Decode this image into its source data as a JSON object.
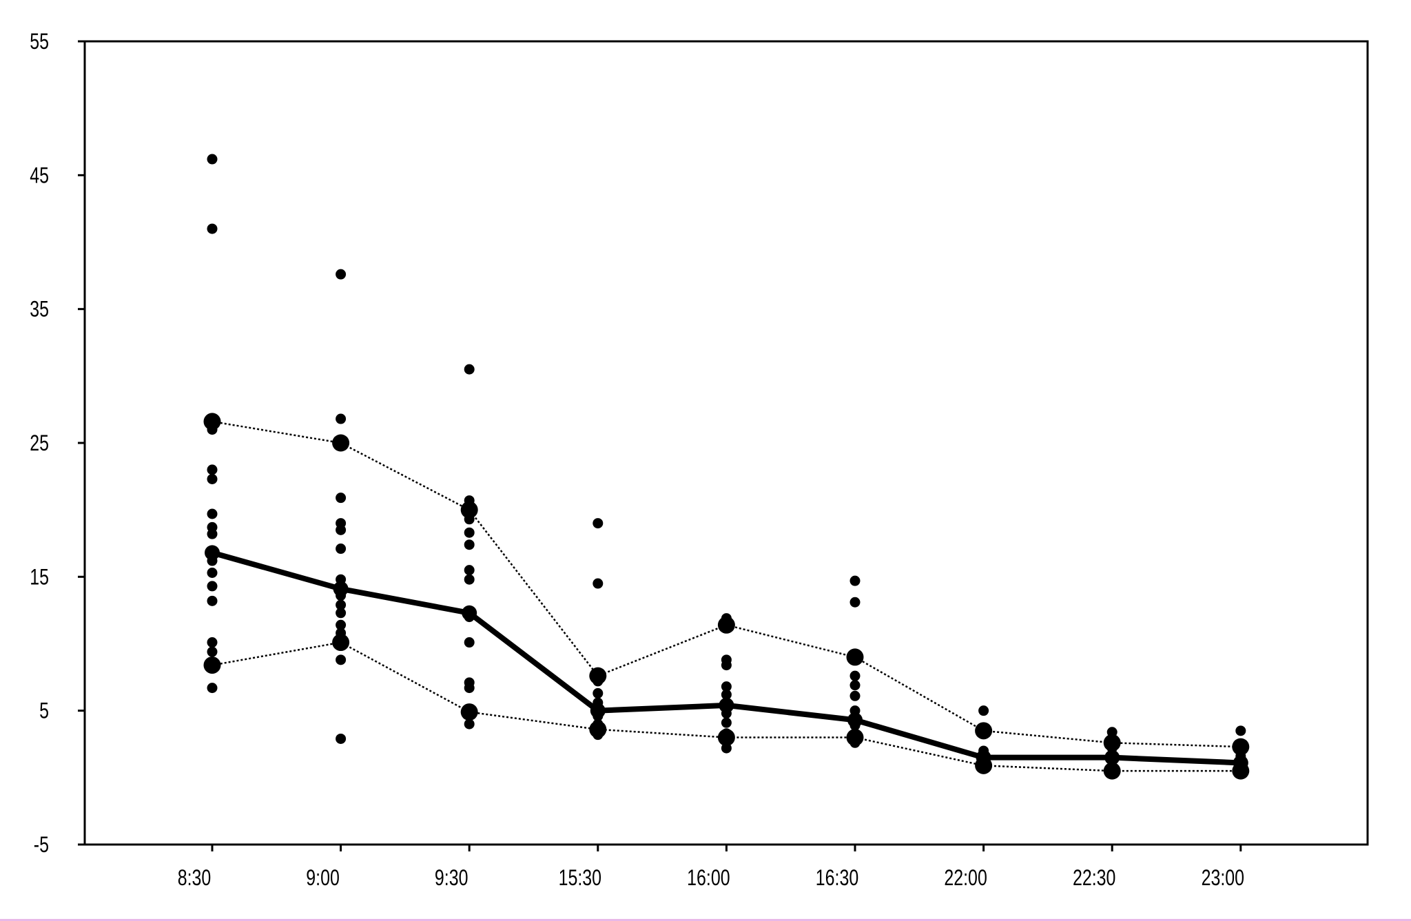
{
  "chart_data": {
    "type": "scatter",
    "title": "",
    "xlabel": "",
    "ylabel": "",
    "categories": [
      "8:30",
      "9:00",
      "9:30",
      "15:30",
      "16:00",
      "16:30",
      "22:00",
      "22:30",
      "23:00"
    ],
    "ylim": [
      -5,
      55
    ],
    "yticks": [
      -5,
      5,
      15,
      25,
      35,
      45,
      55
    ],
    "grid": false,
    "legend": "none",
    "points": [
      [
        46.2,
        41.0,
        26.0,
        23.0,
        22.3,
        19.7,
        18.7,
        18.2,
        16.2,
        15.3,
        14.3,
        13.2,
        10.1,
        9.4,
        6.7
      ],
      [
        37.6,
        26.8,
        20.9,
        19.0,
        18.5,
        17.1,
        14.8,
        13.6,
        12.9,
        12.3,
        11.4,
        10.8,
        8.8,
        2.9
      ],
      [
        30.5,
        20.7,
        19.3,
        18.3,
        17.4,
        15.5,
        14.8,
        12.0,
        10.1,
        7.1,
        6.7,
        4.0
      ],
      [
        19.0,
        14.5,
        7.2,
        6.3,
        5.6,
        4.6,
        4.0,
        3.2
      ],
      [
        11.9,
        11.2,
        8.8,
        8.4,
        6.8,
        6.2,
        5.6,
        4.8,
        4.1,
        3.3,
        2.2
      ],
      [
        14.7,
        13.1,
        7.6,
        6.9,
        6.1,
        5.0,
        3.9,
        2.6
      ],
      [
        5.0,
        3.7,
        2.0,
        1.4,
        0.9
      ],
      [
        3.4,
        2.9,
        2.2,
        1.7,
        0.4
      ],
      [
        3.5,
        2.4,
        1.6,
        1.0,
        0.4
      ]
    ],
    "series": [
      {
        "values": [
          16.8,
          14.1,
          12.3,
          5.0,
          5.4,
          4.3,
          1.5,
          1.5,
          1.1
        ],
        "style": "solid-thick",
        "color": "#000000"
      },
      {
        "values": [
          26.6,
          25.0,
          20.0,
          7.6,
          11.4,
          9.0,
          3.5,
          2.6,
          2.3
        ],
        "style": "dotted",
        "color": "#000000"
      },
      {
        "values": [
          8.4,
          10.1,
          4.9,
          3.6,
          3.0,
          3.0,
          0.9,
          0.5,
          0.5
        ],
        "style": "dotted",
        "color": "#000000"
      }
    ]
  }
}
